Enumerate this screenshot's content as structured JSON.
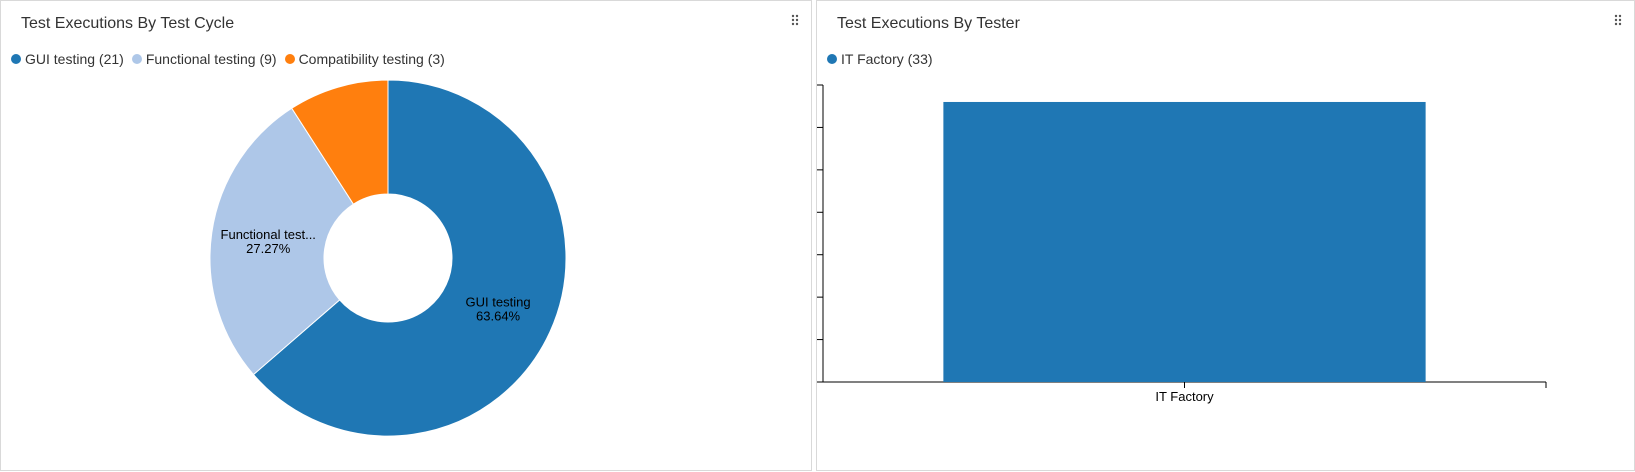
{
  "panels": [
    {
      "title": "Test Executions By Test Cycle",
      "legend": [
        {
          "label": "GUI testing (21)",
          "color": "#1f77b4"
        },
        {
          "label": "Functional testing (9)",
          "color": "#aec7e8"
        },
        {
          "label": "Compatibility testing (3)",
          "color": "#ff7f0e"
        }
      ]
    },
    {
      "title": "Test Executions By Tester",
      "legend": [
        {
          "label": "IT Factory (33)",
          "color": "#1f77b4"
        }
      ]
    }
  ],
  "chart_data": [
    {
      "type": "pie",
      "donut": true,
      "title": "Test Executions By Test Cycle",
      "slices": [
        {
          "name": "GUI testing",
          "value": 21,
          "color": "#1f77b4",
          "label": "GUI testing",
          "percent_label": "63.64%"
        },
        {
          "name": "Functional testing",
          "value": 9,
          "color": "#aec7e8",
          "label": "Functional test...",
          "percent_label": "27.27%"
        },
        {
          "name": "Compatibility testing",
          "value": 3,
          "color": "#ff7f0e",
          "label": "",
          "percent_label": ""
        }
      ],
      "legend_position": "top-left"
    },
    {
      "type": "bar",
      "title": "Test Executions By Tester",
      "categories": [
        "IT Factory"
      ],
      "series": [
        {
          "name": "IT Factory",
          "values": [
            33
          ],
          "color": "#1f77b4"
        }
      ],
      "ylim": [
        0,
        35
      ],
      "yticks": [
        "0",
        "5",
        "10",
        "15",
        "20",
        "25",
        "30",
        "35"
      ],
      "grid": false,
      "legend_position": "top-left"
    }
  ]
}
